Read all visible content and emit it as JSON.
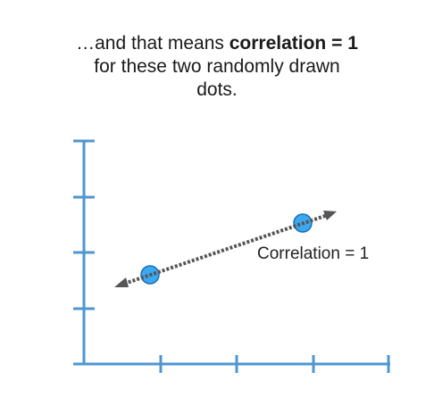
{
  "caption": {
    "line1_pre": "…and that means ",
    "line1_bold": "correlation = 1",
    "line2": "for these two randomly drawn",
    "line3": "dots."
  },
  "plot": {
    "label": "Correlation = 1",
    "colors": {
      "axis": "#4f96d1",
      "dot_fill": "#3aa9f2",
      "dot_stroke": "#1c6fb3",
      "line": "#555555"
    }
  }
}
